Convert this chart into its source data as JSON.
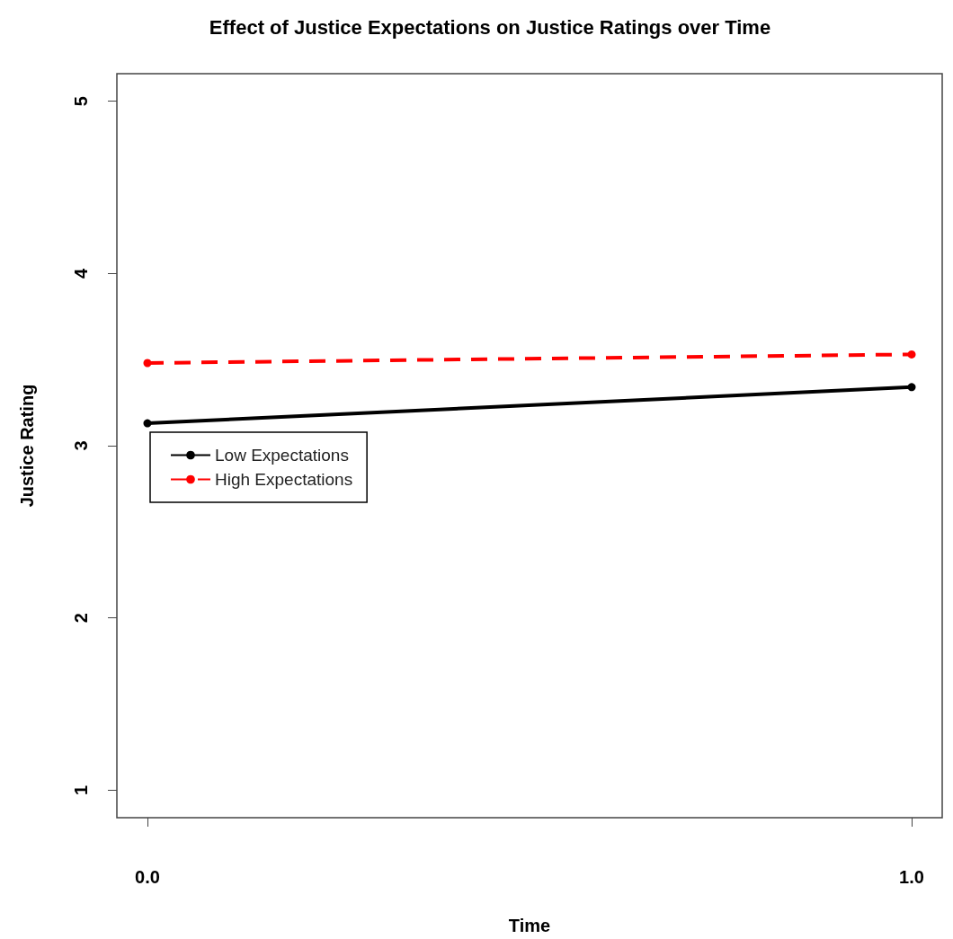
{
  "chart_data": {
    "type": "line",
    "title": "Effect of Justice Expectations on Justice Ratings over Time",
    "xlabel": "Time",
    "ylabel": "Justice Rating",
    "x": [
      0,
      1
    ],
    "series": [
      {
        "name": "Low Expectations",
        "color": "#000000",
        "line_style": "solid",
        "values": [
          3.13,
          3.34
        ]
      },
      {
        "name": "High Expectations",
        "color": "#ff0000",
        "line_style": "dashed",
        "values": [
          3.48,
          3.53
        ]
      }
    ],
    "xlim": [
      -0.04,
      1.04
    ],
    "xticks": [
      {
        "value": 0,
        "label": "0.0"
      },
      {
        "value": 1,
        "label": "1.0"
      }
    ],
    "ylim": [
      0.84,
      5.16
    ],
    "yticks": [
      1,
      2,
      3,
      4,
      5
    ],
    "marker": "circle",
    "legend": "left",
    "grid": false
  }
}
